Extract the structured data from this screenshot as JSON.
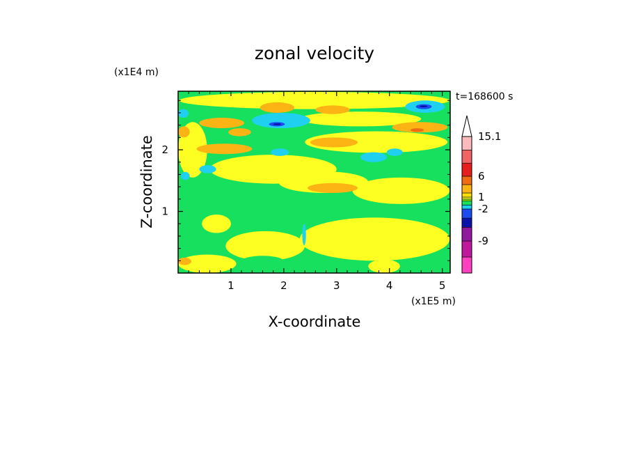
{
  "chart_data": {
    "type": "heatmap",
    "title": "zonal velocity",
    "xlabel": "X-coordinate",
    "ylabel": "Z-coordinate",
    "x_unit": "(x1E5 m)",
    "y_unit": "(x1E4 m)",
    "time_label": "t=168600 s",
    "xlim": [
      0,
      5.15
    ],
    "ylim": [
      0,
      2.95
    ],
    "x_ticks": [
      "1",
      "2",
      "3",
      "4",
      "5"
    ],
    "y_ticks": [
      "1",
      "2"
    ],
    "colorbar": {
      "labels": [
        {
          "text": "15.1",
          "value": 15.1
        },
        {
          "text": "6",
          "value": 6
        },
        {
          "text": "1",
          "value": 1
        },
        {
          "text": "-2",
          "value": -2
        },
        {
          "text": "-9",
          "value": -9
        }
      ],
      "bands": [
        {
          "color": "#ff40c0",
          "lo": -15,
          "hi": -12
        },
        {
          "color": "#c0189c",
          "lo": -12,
          "hi": -9
        },
        {
          "color": "#8f1a9c",
          "lo": -9,
          "hi": -6
        },
        {
          "color": "#0a12a8",
          "lo": -6,
          "hi": -4
        },
        {
          "color": "#1c4cf0",
          "lo": -4,
          "hi": -2
        },
        {
          "color": "#1fd0ef",
          "lo": -2,
          "hi": -1
        },
        {
          "color": "#17e05e",
          "lo": -1,
          "hi": 0
        },
        {
          "color": "#8ff00c",
          "lo": 0,
          "hi": 0.5
        },
        {
          "color": "#fcff21",
          "lo": 0.5,
          "hi": 1
        },
        {
          "color": "#ffe000",
          "lo": 1,
          "hi": 2
        },
        {
          "color": "#fbb414",
          "lo": 2,
          "hi": 4
        },
        {
          "color": "#f06c12",
          "lo": 4,
          "hi": 6
        },
        {
          "color": "#e71e1e",
          "lo": 6,
          "hi": 9
        },
        {
          "color": "#f06464",
          "lo": 9,
          "hi": 12
        },
        {
          "color": "#fbbabb",
          "lo": 12,
          "hi": 15.1
        }
      ],
      "extend_max_color": "#ffffff"
    },
    "background_color": "#17e05e",
    "regions": [
      {
        "color": "#fcff21",
        "x": [
          0.02,
          5.14
        ],
        "y": [
          2.66,
          2.94
        ]
      },
      {
        "color": "#fcff21",
        "x": [
          0.0,
          0.55
        ],
        "y": [
          1.55,
          2.45
        ]
      },
      {
        "color": "#fcff21",
        "x": [
          2.3,
          4.6
        ],
        "y": [
          2.38,
          2.62
        ]
      },
      {
        "color": "#fcff21",
        "x": [
          2.4,
          5.1
        ],
        "y": [
          1.95,
          2.3
        ]
      },
      {
        "color": "#fcff21",
        "x": [
          0.6,
          3.0
        ],
        "y": [
          1.45,
          1.92
        ]
      },
      {
        "color": "#fcff21",
        "x": [
          3.3,
          5.14
        ],
        "y": [
          1.12,
          1.55
        ]
      },
      {
        "color": "#fcff21",
        "x": [
          1.9,
          3.6
        ],
        "y": [
          1.3,
          1.65
        ]
      },
      {
        "color": "#fcff21",
        "x": [
          2.3,
          5.14
        ],
        "y": [
          0.2,
          0.9
        ]
      },
      {
        "color": "#fcff21",
        "x": [
          0.9,
          2.4
        ],
        "y": [
          0.2,
          0.68
        ]
      },
      {
        "color": "#fcff21",
        "x": [
          0.0,
          1.1
        ],
        "y": [
          0.0,
          0.3
        ]
      },
      {
        "color": "#fcff21",
        "x": [
          0.45,
          1.0
        ],
        "y": [
          0.65,
          0.95
        ]
      },
      {
        "color": "#fcff21",
        "x": [
          3.6,
          4.2
        ],
        "y": [
          0.0,
          0.22
        ]
      },
      {
        "color": "#17e05e",
        "x": [
          0.9,
          2.5
        ],
        "y": [
          0.95,
          1.15
        ]
      },
      {
        "color": "#17e05e",
        "x": [
          0.0,
          0.4
        ],
        "y": [
          0.5,
          0.75
        ]
      },
      {
        "color": "#17e05e",
        "x": [
          1.2,
          2.0
        ],
        "y": [
          0.1,
          0.28
        ]
      },
      {
        "color": "#fbb414",
        "x": [
          1.55,
          2.2
        ],
        "y": [
          2.6,
          2.77
        ]
      },
      {
        "color": "#fbb414",
        "x": [
          2.6,
          3.25
        ],
        "y": [
          2.58,
          2.72
        ]
      },
      {
        "color": "#fbb414",
        "x": [
          0.4,
          1.25
        ],
        "y": [
          2.35,
          2.52
        ]
      },
      {
        "color": "#fbb414",
        "x": [
          0.95,
          1.38
        ],
        "y": [
          2.22,
          2.35
        ]
      },
      {
        "color": "#fbb414",
        "x": [
          0.35,
          1.4
        ],
        "y": [
          1.93,
          2.1
        ]
      },
      {
        "color": "#fbb414",
        "x": [
          2.5,
          3.4
        ],
        "y": [
          2.04,
          2.2
        ]
      },
      {
        "color": "#fbb414",
        "x": [
          4.05,
          5.1
        ],
        "y": [
          2.28,
          2.45
        ]
      },
      {
        "color": "#fbb414",
        "x": [
          2.45,
          3.4
        ],
        "y": [
          1.3,
          1.46
        ]
      },
      {
        "color": "#fbb414",
        "x": [
          0.0,
          0.22
        ],
        "y": [
          2.2,
          2.38
        ]
      },
      {
        "color": "#fbb414",
        "x": [
          0.0,
          0.25
        ],
        "y": [
          0.13,
          0.25
        ]
      },
      {
        "color": "#f06c12",
        "x": [
          4.4,
          4.65
        ],
        "y": [
          2.29,
          2.35
        ]
      },
      {
        "color": "#1fd0ef",
        "x": [
          1.4,
          2.5
        ],
        "y": [
          2.35,
          2.6
        ]
      },
      {
        "color": "#1fd0ef",
        "x": [
          4.3,
          5.05
        ],
        "y": [
          2.6,
          2.8
        ]
      },
      {
        "color": "#1fd0ef",
        "x": [
          0.0,
          0.2
        ],
        "y": [
          2.52,
          2.66
        ]
      },
      {
        "color": "#1fd0ef",
        "x": [
          0.05,
          0.22
        ],
        "y": [
          1.51,
          1.64
        ]
      },
      {
        "color": "#1fd0ef",
        "x": [
          0.4,
          0.72
        ],
        "y": [
          1.62,
          1.75
        ]
      },
      {
        "color": "#1fd0ef",
        "x": [
          3.45,
          3.95
        ],
        "y": [
          1.8,
          1.96
        ]
      },
      {
        "color": "#1fd0ef",
        "x": [
          1.75,
          2.1
        ],
        "y": [
          1.9,
          2.02
        ]
      },
      {
        "color": "#1fd0ef",
        "x": [
          3.95,
          4.25
        ],
        "y": [
          1.9,
          2.02
        ]
      },
      {
        "color": "#1fd0ef",
        "x": [
          2.35,
          2.42
        ],
        "y": [
          0.45,
          0.8
        ]
      },
      {
        "color": "#1c4cf0",
        "x": [
          1.72,
          2.02
        ],
        "y": [
          2.38,
          2.45
        ]
      },
      {
        "color": "#1c4cf0",
        "x": [
          4.5,
          4.8
        ],
        "y": [
          2.66,
          2.74
        ]
      },
      {
        "color": "#0a12a8",
        "x": [
          1.8,
          1.95
        ],
        "y": [
          2.4,
          2.43
        ]
      },
      {
        "color": "#0a12a8",
        "x": [
          4.57,
          4.72
        ],
        "y": [
          2.69,
          2.72
        ]
      }
    ]
  }
}
